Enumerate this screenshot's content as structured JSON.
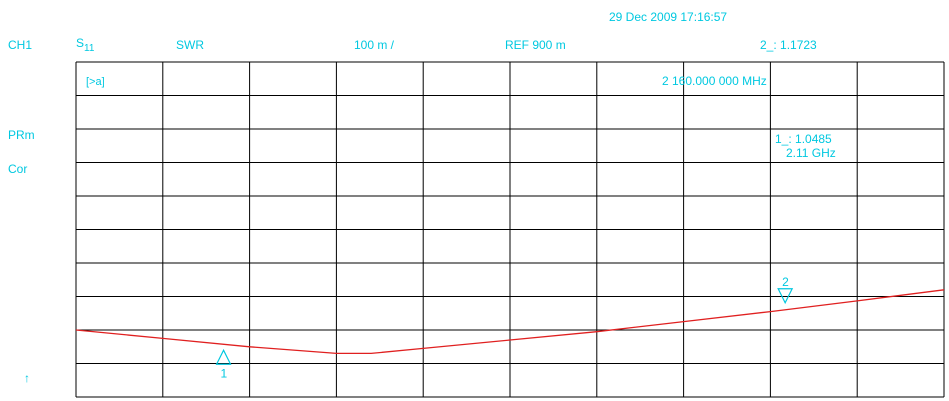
{
  "header": {
    "timestamp": "29 Dec 2009  17:16:57",
    "channel": "CH1",
    "param_main": "S",
    "param_sub": "11",
    "format": "SWR",
    "scale": "100 m /",
    "reference": "REF 900 m",
    "active_marker_readout": "2_: 1.1723"
  },
  "side_labels": {
    "prm": "PRm",
    "cor": "Cor",
    "ref_arrow": "↑"
  },
  "icon_label": "[>a]",
  "marker_readouts": {
    "m2_frequency": "2 160.000 000 MHz",
    "m1_value": "1_: 1.0485",
    "m1_frequency": "2.11 GHz"
  },
  "colors": {
    "trace": "#e02020",
    "annotation": "#00c8e0",
    "grid": "#000000"
  },
  "chart_data": {
    "type": "line",
    "title": "",
    "xlabel": "",
    "ylabel": "",
    "grid": true,
    "divisions": {
      "x": 10,
      "y": 10
    },
    "ylim": [
      0.9,
      1.9
    ],
    "x_div_range": [
      0,
      10
    ],
    "series": [
      {
        "x": [
          0,
          1,
          2,
          3,
          3.4,
          4,
          5,
          6,
          7,
          8,
          9,
          10
        ],
        "y": [
          1.1,
          1.075,
          1.05,
          1.03,
          1.03,
          1.045,
          1.07,
          1.095,
          1.125,
          1.155,
          1.187,
          1.22
        ]
      }
    ],
    "markers": [
      {
        "id": "1",
        "x": 1.7,
        "y": 1.0485,
        "symbol": "triangle-up",
        "position": "below"
      },
      {
        "id": "2",
        "x": 8.17,
        "y": 1.1723,
        "symbol": "triangle-down",
        "position": "above"
      }
    ]
  }
}
